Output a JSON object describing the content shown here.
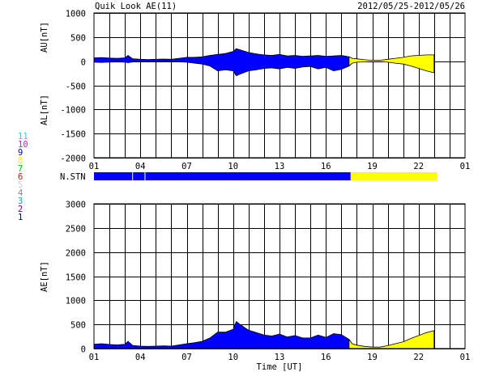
{
  "header": {
    "title": "Quik Look AE(11)",
    "date_range": "2012/05/25-2012/05/26"
  },
  "colors": {
    "provisional": "#0000ff",
    "realtime": "#ffff00",
    "frame": "#000000"
  },
  "stations_legend": [
    {
      "label": "11",
      "color": "#00e8e8"
    },
    {
      "label": "10",
      "color": "#ff00ff"
    },
    {
      "label": "9",
      "color": "#0000cc"
    },
    {
      "label": "8",
      "color": "#ffee00"
    },
    {
      "label": "7",
      "color": "#00cc00"
    },
    {
      "label": "6",
      "color": "#ff0000"
    },
    {
      "label": "5",
      "color": "#cccccc"
    },
    {
      "label": "4",
      "color": "#888888"
    },
    {
      "label": "3",
      "color": "#00aaaa"
    },
    {
      "label": "2",
      "color": "#880088"
    },
    {
      "label": "1",
      "color": "#0000aa"
    }
  ],
  "chart_data": [
    {
      "type": "area",
      "panel": "AU/AL",
      "ylabel_top": "AU[nT]",
      "ylabel_bottom": "AL[nT]",
      "xlabel": "",
      "ylim": [
        -2000,
        1000
      ],
      "yticks": [
        1000,
        500,
        0,
        -500,
        -1000,
        -1500,
        -2000
      ],
      "xlim": [
        1,
        25
      ],
      "xticks": [
        "01",
        "04",
        "07",
        "10",
        "13",
        "16",
        "19",
        "22",
        "01"
      ],
      "grid": true,
      "x": [
        1,
        1.5,
        2,
        2.5,
        3,
        3.2,
        3.5,
        4,
        4.5,
        5,
        5.5,
        6,
        6.5,
        7,
        7.5,
        8,
        8.5,
        9,
        9.5,
        10,
        10.2,
        10.5,
        11,
        11.5,
        12,
        12.5,
        13,
        13.5,
        14,
        14.5,
        15,
        15.5,
        16,
        16.5,
        17,
        17.5,
        17.7,
        18,
        18.5,
        19,
        19.5,
        20,
        20.5,
        21,
        21.5,
        22,
        22.5,
        23
      ],
      "series": [
        {
          "name": "AU",
          "values": [
            70,
            75,
            65,
            60,
            70,
            120,
            50,
            40,
            35,
            40,
            45,
            40,
            60,
            80,
            80,
            90,
            120,
            140,
            160,
            200,
            260,
            230,
            180,
            150,
            130,
            120,
            140,
            110,
            120,
            100,
            110,
            120,
            100,
            110,
            120,
            90,
            60,
            50,
            30,
            20,
            20,
            40,
            60,
            80,
            110,
            120,
            130,
            130
          ]
        },
        {
          "name": "AL",
          "values": [
            -20,
            -25,
            -20,
            -15,
            -20,
            -30,
            -15,
            -10,
            -10,
            -10,
            -10,
            -10,
            -15,
            -20,
            -40,
            -60,
            -100,
            -200,
            -180,
            -200,
            -300,
            -260,
            -200,
            -180,
            -150,
            -140,
            -160,
            -130,
            -150,
            -120,
            -110,
            -160,
            -130,
            -200,
            -170,
            -100,
            -40,
            -20,
            -15,
            -10,
            -10,
            -20,
            -40,
            -60,
            -100,
            -150,
            -200,
            -240
          ]
        }
      ]
    },
    {
      "type": "bar",
      "panel": "N.STN",
      "label": "N.STN",
      "segments": [
        {
          "start": 1,
          "end": 17.6,
          "status": "provisional"
        },
        {
          "start": 17.6,
          "end": 23.2,
          "status": "realtime"
        }
      ]
    },
    {
      "type": "area",
      "panel": "AE",
      "ylabel": "AE[nT]",
      "xlabel": "Time [UT]",
      "ylim": [
        0,
        3000
      ],
      "yticks": [
        3000,
        2500,
        2000,
        1500,
        1000,
        500,
        0
      ],
      "xlim": [
        1,
        25
      ],
      "xticks": [
        "01",
        "04",
        "07",
        "10",
        "13",
        "16",
        "19",
        "22",
        "01"
      ],
      "grid": true,
      "x": [
        1,
        1.5,
        2,
        2.5,
        3,
        3.2,
        3.5,
        4,
        4.5,
        5,
        5.5,
        6,
        6.5,
        7,
        7.5,
        8,
        8.5,
        9,
        9.5,
        10,
        10.2,
        10.5,
        11,
        11.5,
        12,
        12.5,
        13,
        13.5,
        14,
        14.5,
        15,
        15.5,
        16,
        16.5,
        17,
        17.5,
        17.7,
        18,
        18.5,
        19,
        19.5,
        20,
        20.5,
        21,
        21.5,
        22,
        22.5,
        23
      ],
      "series": [
        {
          "name": "AE",
          "values": [
            90,
            100,
            85,
            75,
            90,
            150,
            65,
            50,
            45,
            50,
            55,
            50,
            75,
            100,
            120,
            150,
            220,
            340,
            340,
            400,
            560,
            490,
            380,
            330,
            280,
            260,
            300,
            240,
            270,
            220,
            220,
            280,
            230,
            310,
            290,
            190,
            100,
            70,
            45,
            30,
            30,
            60,
            100,
            140,
            210,
            270,
            330,
            370
          ]
        }
      ]
    }
  ]
}
